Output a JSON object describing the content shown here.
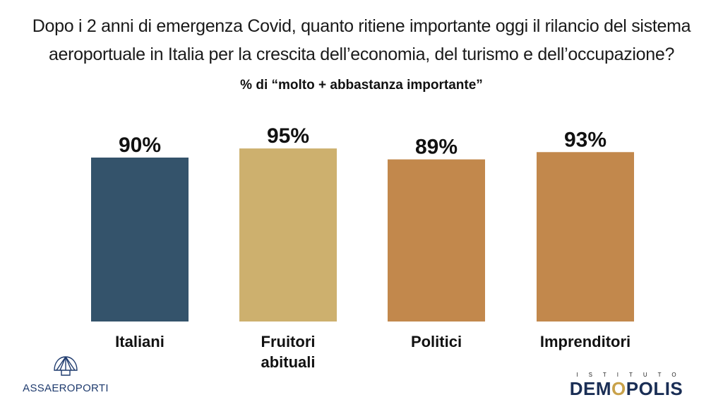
{
  "title_line1": "Dopo i 2 anni di emergenza Covid, quanto ritiene importante oggi il rilancio del sistema",
  "title_line2": "aeroportuale in Italia per la crescita dell’economia, del turismo e dell’occupazione?",
  "subtitle": "% di “molto + abbastanza importante”",
  "chart_data": {
    "type": "bar",
    "categories": [
      "Italiani",
      "Fruitori abituali",
      "Politici",
      "Imprenditori"
    ],
    "category_lines": [
      [
        "Italiani"
      ],
      [
        "Fruitori",
        "abituali"
      ],
      [
        "Politici"
      ],
      [
        "Imprenditori"
      ]
    ],
    "values": [
      90,
      95,
      89,
      93
    ],
    "value_labels": [
      "90%",
      "95%",
      "89%",
      "93%"
    ],
    "colors": [
      "#34536b",
      "#cdb06e",
      "#c2884c",
      "#c2884c"
    ],
    "ylim": [
      0,
      100
    ],
    "legend": "none",
    "grid": false
  },
  "logos": {
    "left_text": "ASSAEROPORTI",
    "right_small": "ISTITUTO",
    "right_big_a": "DEM",
    "right_big_o": "O",
    "right_big_b": "POLIS"
  },
  "colors": {
    "title_text": "#1a1a1a",
    "demopolis_navy": "#1a2e55",
    "demopolis_gold": "#c9a24a",
    "assaeroporti_blue": "#1f3b6e"
  }
}
